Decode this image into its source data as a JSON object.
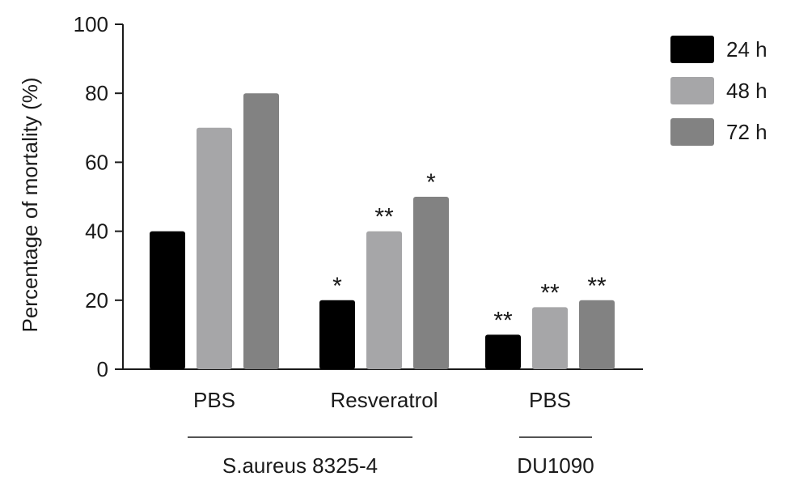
{
  "chart_data": {
    "type": "bar",
    "title": "",
    "xlabel": "",
    "ylabel": "Percentage of mortality (%)",
    "ylim": [
      0,
      100
    ],
    "yticks": [
      0,
      20,
      40,
      60,
      80,
      100
    ],
    "grid": false,
    "legend_position": "top-right",
    "categories": [
      "PBS",
      "Resveratrol",
      "PBS"
    ],
    "groups": [
      {
        "label": "S.aureus 8325-4",
        "categories": [
          0,
          1
        ]
      },
      {
        "label": "DU1090",
        "categories": [
          2
        ]
      }
    ],
    "series": [
      {
        "name": "24 h",
        "color": "#000000",
        "values": [
          40,
          20,
          10
        ],
        "significance": [
          "",
          "*",
          "**"
        ]
      },
      {
        "name": "48 h",
        "color": "#a6a6a8",
        "values": [
          70,
          40,
          18
        ],
        "significance": [
          "",
          "**",
          "**"
        ]
      },
      {
        "name": "72 h",
        "color": "#828282",
        "values": [
          80,
          50,
          20
        ],
        "significance": [
          "",
          "*",
          "**"
        ]
      }
    ]
  }
}
